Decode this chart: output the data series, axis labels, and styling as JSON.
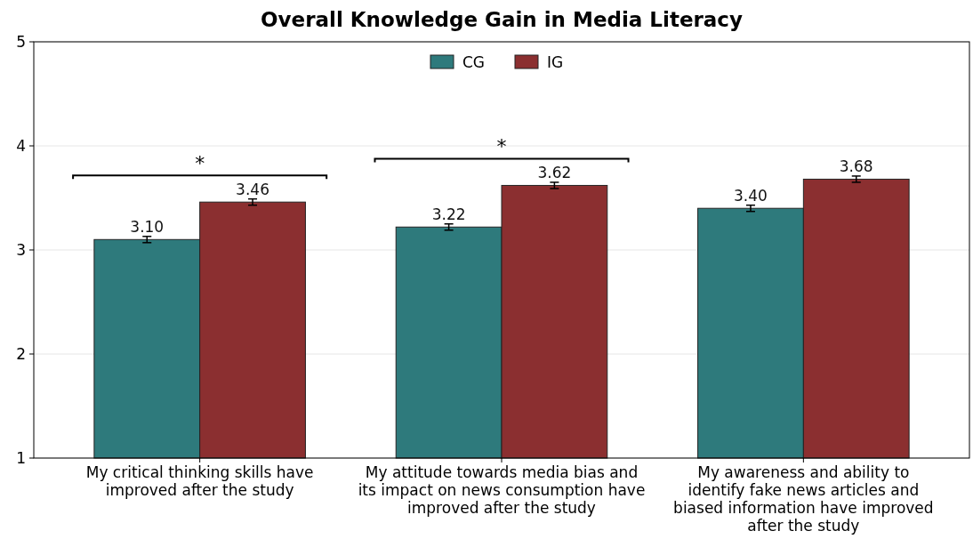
{
  "chart_data": {
    "type": "bar",
    "title": "Overall Knowledge Gain in Media Literacy",
    "categories": [
      "My critical thinking skills have\nimproved after the study",
      "My attitude towards media bias and\nits impact on news consumption have\nimproved after the study",
      "My awareness and ability to\nidentify fake news articles and\nbiased information have improved\nafter the study"
    ],
    "series": [
      {
        "name": "CG",
        "color": "#2e7a7c",
        "values": [
          3.1,
          3.22,
          3.4
        ],
        "errors": [
          0.03,
          0.03,
          0.03
        ],
        "value_labels": [
          "3.10",
          "3.22",
          "3.40"
        ]
      },
      {
        "name": "IG",
        "color": "#8b2f30",
        "values": [
          3.46,
          3.62,
          3.68
        ],
        "errors": [
          0.03,
          0.03,
          0.03
        ],
        "value_labels": [
          "3.46",
          "3.62",
          "3.68"
        ]
      }
    ],
    "ylim": [
      1,
      5
    ],
    "yticks": [
      1,
      2,
      3,
      4,
      5
    ],
    "grid": "y",
    "legend": "top",
    "annotations": [
      "*",
      "*"
    ]
  }
}
